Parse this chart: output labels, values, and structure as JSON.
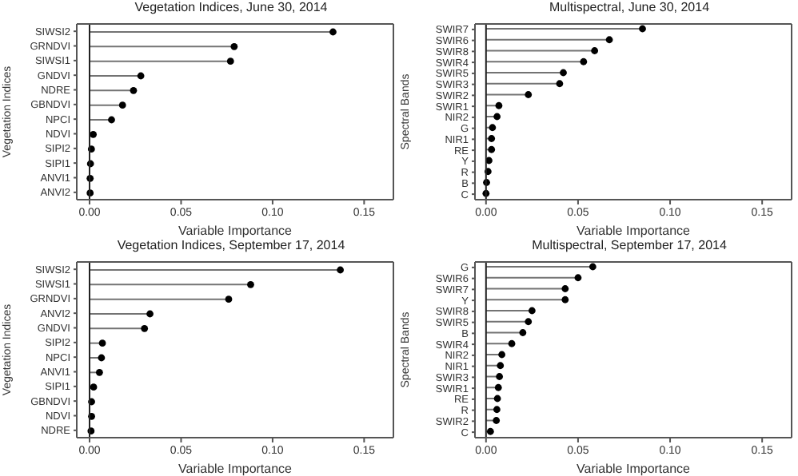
{
  "chart_data": [
    {
      "type": "lollipop",
      "title": "Vegetation Indices, June 30, 2014",
      "xlabel": "Variable Importance",
      "ylabel": "Vegetation Indices",
      "orientation": "horizontal",
      "categories": [
        "SIWSI2",
        "GRNDVI",
        "SIWSI1",
        "GNDVI",
        "NDRE",
        "GBNDVI",
        "NPCI",
        "NDVI",
        "SIPI2",
        "SIPI1",
        "ANVI1",
        "ANVI2"
      ],
      "values": [
        0.133,
        0.079,
        0.077,
        0.028,
        0.024,
        0.018,
        0.012,
        0.002,
        0.001,
        0.0005,
        0.0003,
        0.0003
      ],
      "color": "#000000",
      "xlim": [
        -0.007,
        0.166
      ],
      "xticks": [
        {
          "value": 0,
          "label": "0.00"
        },
        {
          "value": 0.05,
          "label": "0.05"
        },
        {
          "value": 0.1,
          "label": "0.10"
        },
        {
          "value": 0.15,
          "label": "0.15"
        }
      ],
      "ref_lines": [
        {
          "axis": "x",
          "value": 0
        }
      ],
      "grid": false,
      "legend": false,
      "marker": "circle"
    },
    {
      "type": "lollipop",
      "title": "Multispectral, June 30, 2014",
      "xlabel": "Variable Importance",
      "ylabel": "Spectral Bands",
      "orientation": "horizontal",
      "categories": [
        "SWIR7",
        "SWIR6",
        "SWIR8",
        "SWIR4",
        "SWIR5",
        "SWIR3",
        "SWIR2",
        "SWIR1",
        "NIR2",
        "G",
        "NIR1",
        "RE",
        "Y",
        "R",
        "B",
        "C"
      ],
      "values": [
        0.085,
        0.067,
        0.059,
        0.053,
        0.042,
        0.04,
        0.023,
        0.007,
        0.006,
        0.0035,
        0.003,
        0.003,
        0.0016,
        0.0011,
        0.0003,
        0
      ],
      "color": "#000000",
      "xlim": [
        -0.006,
        0.166
      ],
      "xticks": [
        {
          "value": 0,
          "label": "0.00"
        },
        {
          "value": 0.05,
          "label": "0.05"
        },
        {
          "value": 0.1,
          "label": "0.10"
        },
        {
          "value": 0.15,
          "label": "0.15"
        }
      ],
      "ref_lines": [
        {
          "axis": "x",
          "value": 0
        }
      ],
      "grid": false,
      "legend": false,
      "marker": "circle"
    },
    {
      "type": "lollipop",
      "title": "Vegetation Indices, September 17, 2014",
      "xlabel": "Variable Importance",
      "ylabel": "Vegetation Indices",
      "orientation": "horizontal",
      "categories": [
        "SIWSI2",
        "SIWSI1",
        "GRNDVI",
        "ANVI2",
        "GNDVI",
        "SIPI2",
        "NPCI",
        "ANVI1",
        "SIPI1",
        "GBNDVI",
        "NDVI",
        "NDRE"
      ],
      "values": [
        0.137,
        0.088,
        0.076,
        0.033,
        0.03,
        0.007,
        0.0065,
        0.0054,
        0.0022,
        0.0011,
        0.0011,
        0.0008
      ],
      "color": "#000000",
      "xlim": [
        -0.007,
        0.166
      ],
      "xticks": [
        {
          "value": 0,
          "label": "0.00"
        },
        {
          "value": 0.05,
          "label": "0.05"
        },
        {
          "value": 0.1,
          "label": "0.10"
        },
        {
          "value": 0.15,
          "label": "0.15"
        }
      ],
      "ref_lines": [
        {
          "axis": "x",
          "value": 0
        }
      ],
      "grid": false,
      "legend": false,
      "marker": "circle"
    },
    {
      "type": "lollipop",
      "title": "Multispectral, September 17, 2014",
      "xlabel": "Variable Importance",
      "ylabel": "Spectral Bands",
      "orientation": "horizontal",
      "categories": [
        "G",
        "SWIR6",
        "SWIR7",
        "Y",
        "SWIR8",
        "SWIR5",
        "B",
        "SWIR4",
        "NIR2",
        "NIR1",
        "SWIR3",
        "SWIR1",
        "RE",
        "R",
        "SWIR2",
        "C"
      ],
      "values": [
        0.058,
        0.05,
        0.043,
        0.043,
        0.025,
        0.023,
        0.02,
        0.014,
        0.0086,
        0.0078,
        0.0073,
        0.0067,
        0.0062,
        0.0059,
        0.0056,
        0.0024
      ],
      "color": "#000000",
      "xlim": [
        -0.006,
        0.166
      ],
      "xticks": [
        {
          "value": 0,
          "label": "0.00"
        },
        {
          "value": 0.05,
          "label": "0.05"
        },
        {
          "value": 0.1,
          "label": "0.10"
        },
        {
          "value": 0.15,
          "label": "0.15"
        }
      ],
      "ref_lines": [
        {
          "axis": "x",
          "value": 0
        }
      ],
      "grid": false,
      "legend": false,
      "marker": "circle"
    }
  ]
}
